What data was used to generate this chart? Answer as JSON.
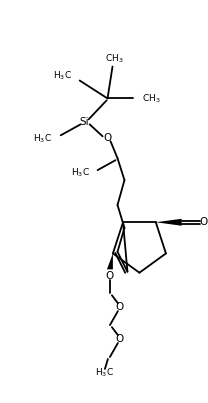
{
  "background": "#ffffff",
  "line_color": "#000000",
  "lw": 1.3,
  "fig_width": 2.08,
  "fig_height": 4.03,
  "dpi": 100,
  "labels": {
    "ch3_top": "CH$_3$",
    "ch3_right": "CH$_3$",
    "h3c_left_tbu": "H$_3$C",
    "h3c_si": "H$_3$C",
    "si": "Si",
    "h3c_chain": "H$_3$C",
    "o_ald": "O",
    "h3co": "H$_3$C"
  }
}
